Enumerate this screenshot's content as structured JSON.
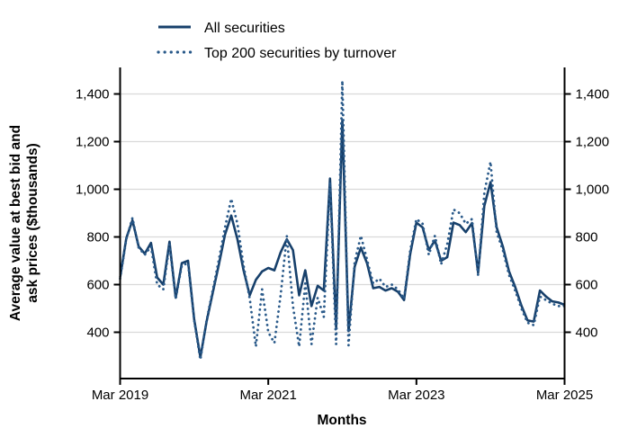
{
  "chart_data": {
    "type": "line",
    "title": "",
    "xlabel": "Months",
    "ylabel_lines": [
      "Average value at best bid and",
      "ask prices ($thousands)"
    ],
    "x_range": {
      "start": "Mar 2019",
      "end": "Mar 2025",
      "points": 73,
      "frequency": "monthly"
    },
    "x_tick_labels": [
      "Mar 2019",
      "Mar 2021",
      "Mar 2023",
      "Mar 2025"
    ],
    "x_tick_month_indices": [
      0,
      24,
      48,
      72
    ],
    "y_ticks": [
      400,
      600,
      800,
      1000,
      1200,
      1400
    ],
    "y_tick_labels": [
      "400",
      "600",
      "800",
      "1,000",
      "1,200",
      "1,400"
    ],
    "ylim": [
      205,
      1510
    ],
    "grid": "horizontal-only",
    "legend_position": "top-left-above-plot",
    "series": [
      {
        "name": "All securities",
        "style": "solid",
        "color": "#17406B",
        "values": [
          630,
          795,
          870,
          760,
          730,
          775,
          630,
          600,
          780,
          545,
          690,
          700,
          455,
          295,
          445,
          565,
          685,
          810,
          890,
          790,
          660,
          555,
          620,
          655,
          670,
          660,
          735,
          790,
          745,
          555,
          660,
          510,
          595,
          575,
          1045,
          420,
          1290,
          405,
          675,
          755,
          690,
          585,
          590,
          575,
          585,
          570,
          535,
          730,
          860,
          840,
          745,
          785,
          700,
          715,
          860,
          850,
          820,
          858,
          650,
          930,
          1030,
          840,
          760,
          655,
          590,
          512,
          450,
          445,
          575,
          550,
          530,
          525,
          515
        ]
      },
      {
        "name": "Top 200 securities by turnover",
        "style": "dotted",
        "color": "#2A5A8A",
        "values": [
          625,
          790,
          880,
          755,
          725,
          760,
          600,
          580,
          770,
          540,
          680,
          690,
          450,
          285,
          450,
          575,
          705,
          840,
          960,
          855,
          680,
          540,
          340,
          580,
          400,
          355,
          555,
          805,
          510,
          340,
          605,
          350,
          545,
          465,
          1030,
          350,
          1455,
          345,
          695,
          805,
          705,
          605,
          625,
          590,
          600,
          580,
          540,
          745,
          875,
          855,
          725,
          805,
          685,
          770,
          915,
          900,
          855,
          875,
          640,
          985,
          1115,
          820,
          745,
          640,
          575,
          500,
          440,
          430,
          550,
          535,
          520,
          510,
          510
        ]
      }
    ],
    "colors": {
      "axis_line": "#000000",
      "gridline": "#d9d9d9",
      "text": "#000000",
      "background": "#ffffff"
    }
  }
}
